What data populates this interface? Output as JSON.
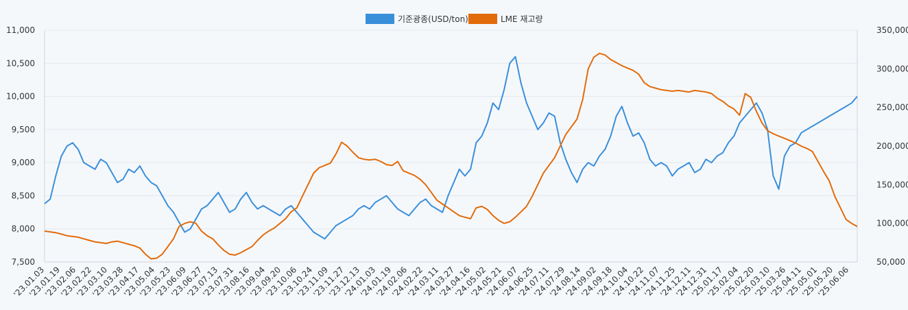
{
  "chart_data": {
    "type": "line",
    "legend": {
      "position": "top-center",
      "items": [
        {
          "label": "기준광종(USD/ton)",
          "color": "#3a8fdb"
        },
        {
          "label": "LME 재고량",
          "color": "#e26b0a"
        }
      ]
    },
    "y_left": {
      "min": 7500,
      "max": 11000,
      "ticks": [
        "7,500",
        "8,000",
        "8,500",
        "9,000",
        "9,500",
        "10,000",
        "10,500",
        "11,000"
      ]
    },
    "y_right": {
      "min": 50000,
      "max": 350000,
      "ticks": [
        "50,000",
        "100,000",
        "150,000",
        "200,000",
        "250,000",
        "300,000",
        "350,000"
      ]
    },
    "x_ticks": [
      "'23.01.03",
      "'23.01.19",
      "'23.02.06",
      "'23.02.22",
      "'23.03.10",
      "'23.03.28",
      "'23.04.17",
      "'23.05.04",
      "'23.05.23",
      "'23.06.09",
      "'23.06.27",
      "'23.07.13",
      "'23.07.31",
      "'23.08.16",
      "'23.09.04",
      "'23.09.20",
      "'23.10.06",
      "'23.10.24",
      "'23.11.09",
      "'23.11.27",
      "'23.12.13",
      "'24.01.03",
      "'24.01.19",
      "'24.02.06",
      "'24.02.22",
      "'24.03.11",
      "'24.03.27",
      "'24.04.16",
      "'24.05.02",
      "'24.05.21",
      "'24.06.07",
      "'24.06.25",
      "'24.07.11",
      "'24.07.29",
      "'24.08.14",
      "'24.09.02",
      "'24.09.18",
      "'24.10.04",
      "'24.10.22",
      "'24.11.07",
      "'24.11.25",
      "'24.12.11",
      "'24.12.31",
      "'25.01.17",
      "'25.02.04",
      "'25.02.20",
      "'25.03.10",
      "'25.03.26",
      "'25.04.11",
      "'25.05.01",
      "'25.05.20",
      "'25.06.06"
    ],
    "series": [
      {
        "name": "기준광종(USD/ton)",
        "color": "#3a8fdb",
        "axis": "left",
        "values": [
          8380,
          8450,
          8800,
          9100,
          9250,
          9300,
          9200,
          9000,
          8950,
          8900,
          9050,
          9000,
          8850,
          8700,
          8750,
          8900,
          8850,
          8950,
          8800,
          8700,
          8650,
          8500,
          8350,
          8250,
          8100,
          7950,
          8000,
          8150,
          8300,
          8350,
          8450,
          8550,
          8400,
          8250,
          8300,
          8450,
          8550,
          8400,
          8300,
          8350,
          8300,
          8250,
          8200,
          8300,
          8350,
          8250,
          8150,
          8050,
          7950,
          7900,
          7850,
          7950,
          8050,
          8100,
          8150,
          8200,
          8300,
          8350,
          8300,
          8400,
          8450,
          8500,
          8400,
          8300,
          8250,
          8200,
          8300,
          8400,
          8450,
          8350,
          8300,
          8250,
          8500,
          8700,
          8900,
          8800,
          8900,
          9300,
          9400,
          9600,
          9900,
          9800,
          10100,
          10500,
          10600,
          10200,
          9900,
          9700,
          9500,
          9600,
          9750,
          9700,
          9300,
          9050,
          8850,
          8700,
          8900,
          9000,
          8950,
          9100,
          9200,
          9400,
          9700,
          9850,
          9600,
          9400,
          9450,
          9300,
          9050,
          8950,
          9000,
          8950,
          8800,
          8900,
          8950,
          9000,
          8850,
          8900,
          9050,
          9000,
          9100,
          9150,
          9300,
          9400,
          9600,
          9700,
          9800,
          9900,
          9750,
          9500,
          8800,
          8600,
          9100,
          9250,
          9300,
          9450,
          9500,
          9550,
          9600,
          9650,
          9700,
          9750,
          9800,
          9850,
          9900,
          10000
        ]
      },
      {
        "name": "LME 재고량",
        "color": "#e26b0a",
        "axis": "right",
        "values": [
          90000,
          89000,
          88000,
          86000,
          84000,
          83000,
          82000,
          80000,
          78000,
          76000,
          75000,
          74000,
          76000,
          77000,
          75000,
          73000,
          71000,
          68000,
          60000,
          54000,
          55000,
          60000,
          70000,
          80000,
          96000,
          100000,
          102000,
          100000,
          90000,
          84000,
          80000,
          72000,
          65000,
          60000,
          59000,
          62000,
          66000,
          70000,
          78000,
          85000,
          90000,
          94000,
          100000,
          106000,
          115000,
          120000,
          135000,
          150000,
          165000,
          172000,
          175000,
          178000,
          190000,
          205000,
          200000,
          192000,
          185000,
          183000,
          182000,
          183000,
          180000,
          176000,
          175000,
          180000,
          168000,
          165000,
          162000,
          157000,
          150000,
          140000,
          130000,
          125000,
          120000,
          115000,
          110000,
          108000,
          106000,
          120000,
          122000,
          118000,
          110000,
          104000,
          100000,
          102000,
          108000,
          115000,
          122000,
          135000,
          150000,
          165000,
          175000,
          185000,
          200000,
          215000,
          225000,
          235000,
          260000,
          300000,
          315000,
          320000,
          318000,
          312000,
          308000,
          304000,
          301000,
          298000,
          293000,
          282000,
          277000,
          275000,
          273000,
          272000,
          271000,
          272000,
          271000,
          270000,
          272000,
          271000,
          270000,
          268000,
          262000,
          258000,
          252000,
          248000,
          240000,
          268000,
          263000,
          245000,
          230000,
          220000,
          216000,
          213000,
          210000,
          207000,
          204000,
          200000,
          197000,
          193000,
          180000,
          167000,
          155000,
          135000,
          120000,
          105000,
          100000,
          96000
        ]
      }
    ]
  }
}
